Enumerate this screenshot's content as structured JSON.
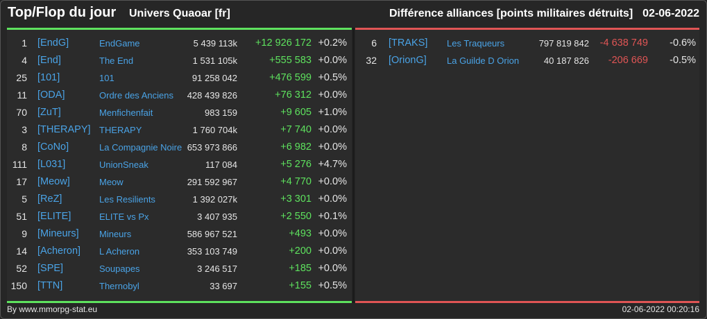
{
  "header": {
    "title": "Top/Flop du jour",
    "universe": "Univers Quaoar [fr]",
    "category": "Différence alliances [points militaires détruits]",
    "date": "02-06-2022"
  },
  "top": [
    {
      "rank": "1",
      "tag": "[EndG]",
      "name": "EndGame",
      "points": "5 439 113k",
      "diff": "+12 926 172",
      "pct": "+0.2%"
    },
    {
      "rank": "4",
      "tag": "[End]",
      "name": "The End",
      "points": "1 531 105k",
      "diff": "+555 583",
      "pct": "+0.0%"
    },
    {
      "rank": "25",
      "tag": "[101]",
      "name": "101",
      "points": "91 258 042",
      "diff": "+476 599",
      "pct": "+0.5%"
    },
    {
      "rank": "11",
      "tag": "[ODA]",
      "name": "Ordre des Anciens",
      "points": "428 439 826",
      "diff": "+76 312",
      "pct": "+0.0%"
    },
    {
      "rank": "70",
      "tag": "[ZuT]",
      "name": "Menfichenfait",
      "points": "983 159",
      "diff": "+9 605",
      "pct": "+1.0%"
    },
    {
      "rank": "3",
      "tag": "[THERAPY]",
      "name": "THERAPY",
      "points": "1 760 704k",
      "diff": "+7 740",
      "pct": "+0.0%"
    },
    {
      "rank": "8",
      "tag": "[CoNo]",
      "name": "La Compagnie Noire",
      "points": "653 973 866",
      "diff": "+6 982",
      "pct": "+0.0%"
    },
    {
      "rank": "111",
      "tag": "[L031]",
      "name": "UnionSneak",
      "points": "117 084",
      "diff": "+5 276",
      "pct": "+4.7%"
    },
    {
      "rank": "17",
      "tag": "[Meow]",
      "name": "Meow",
      "points": "291 592 967",
      "diff": "+4 770",
      "pct": "+0.0%"
    },
    {
      "rank": "5",
      "tag": "[ReZ]",
      "name": "Les Resilients",
      "points": "1 392 027k",
      "diff": "+3 301",
      "pct": "+0.0%"
    },
    {
      "rank": "51",
      "tag": "[ELITE]",
      "name": "ELITE vs Px",
      "points": "3 407 935",
      "diff": "+2 550",
      "pct": "+0.1%"
    },
    {
      "rank": "9",
      "tag": "[Mineurs]",
      "name": "Mineurs",
      "points": "586 967 521",
      "diff": "+493",
      "pct": "+0.0%"
    },
    {
      "rank": "14",
      "tag": "[Acheron]",
      "name": "L Acheron",
      "points": "353 103 749",
      "diff": "+200",
      "pct": "+0.0%"
    },
    {
      "rank": "52",
      "tag": "[SPE]",
      "name": "Soupapes",
      "points": "3 246 517",
      "diff": "+185",
      "pct": "+0.0%"
    },
    {
      "rank": "150",
      "tag": "[TTN]",
      "name": "Thernobyl",
      "points": "33 697",
      "diff": "+155",
      "pct": "+0.5%"
    }
  ],
  "flop": [
    {
      "rank": "6",
      "tag": "[TRAKS]",
      "name": "Les Traqueurs",
      "points": "797 819 842",
      "diff": "-4 638 749",
      "pct": "-0.6%"
    },
    {
      "rank": "32",
      "tag": "[OrionG]",
      "name": "La Guilde D Orion",
      "points": "40 187 826",
      "diff": "-206 669",
      "pct": "-0.5%"
    }
  ],
  "footer": {
    "credit": "By www.mmorpg-stat.eu",
    "timestamp": "02-06-2022 00:20:16"
  },
  "colors": {
    "accent_top": "#5ee25e",
    "accent_flop": "#e05555",
    "link": "#4aa3e6",
    "background": "#262626"
  }
}
